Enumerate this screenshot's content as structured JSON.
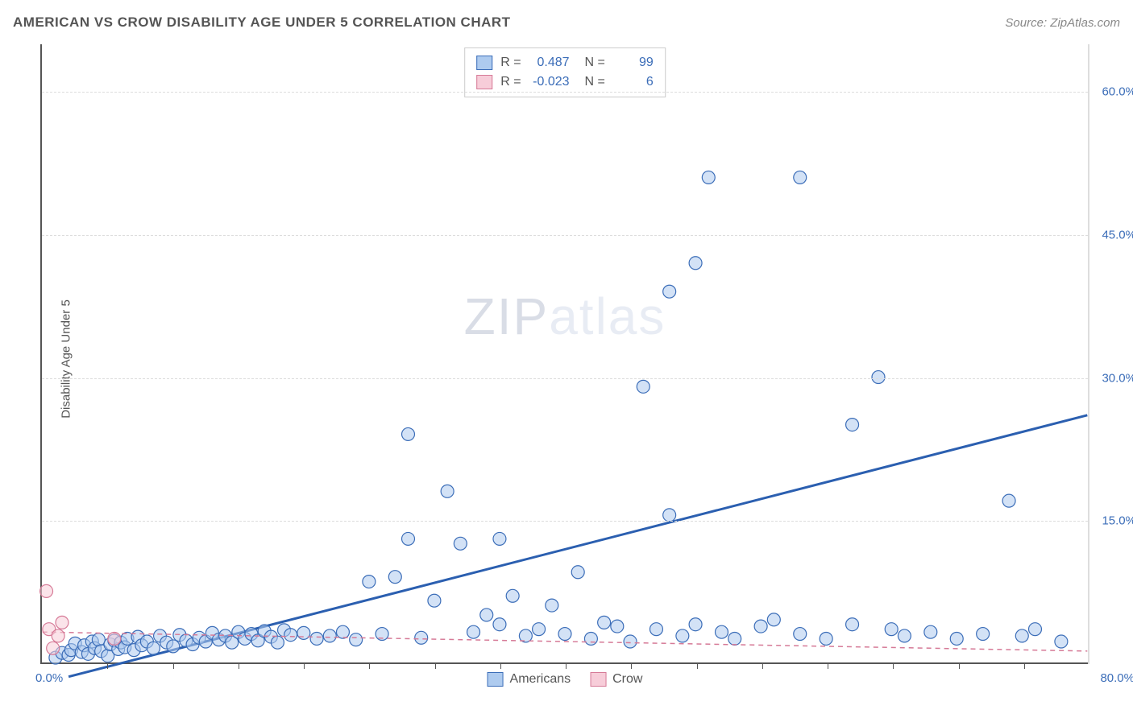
{
  "header": {
    "title": "AMERICAN VS CROW DISABILITY AGE UNDER 5 CORRELATION CHART",
    "source_prefix": "Source: ",
    "source_name": "ZipAtlas.com"
  },
  "axes": {
    "y_label": "Disability Age Under 5",
    "x_min_label": "0.0%",
    "x_max_label": "80.0%",
    "xlim": [
      0,
      80
    ],
    "ylim": [
      0,
      65
    ],
    "y_ticks": [
      15.0,
      30.0,
      45.0,
      60.0
    ],
    "y_tick_labels": [
      "15.0%",
      "30.0%",
      "45.0%",
      "60.0%"
    ],
    "x_tick_step": 5,
    "grid_color": "#dddddd",
    "axis_color": "#555555",
    "tick_label_color": "#3b6db8",
    "tick_label_fontsize": 15,
    "axis_label_fontsize": 15
  },
  "watermark": {
    "zip": "ZIP",
    "atlas": "atlas"
  },
  "legend_top": {
    "rows": [
      {
        "swatch_fill": "#aecbef",
        "swatch_stroke": "#3b6db8",
        "r": "0.487",
        "n": "99"
      },
      {
        "swatch_fill": "#f7cdd9",
        "swatch_stroke": "#d67a97",
        "r": "-0.023",
        "n": "6"
      }
    ],
    "r_label": "R =",
    "n_label": "N ="
  },
  "legend_bottom": {
    "items": [
      {
        "swatch_fill": "#aecbef",
        "swatch_stroke": "#3b6db8",
        "label": "Americans"
      },
      {
        "swatch_fill": "#f7cdd9",
        "swatch_stroke": "#d67a97",
        "label": "Crow"
      }
    ]
  },
  "chart": {
    "type": "scatter",
    "background_color": "#ffffff",
    "marker_radius": 8,
    "marker_fill_opacity": 0.55,
    "marker_stroke_width": 1.2,
    "series": [
      {
        "name": "Americans",
        "color_fill": "#aecbef",
        "color_stroke": "#3b6db8",
        "trend": {
          "x1": 2,
          "y1": -1.5,
          "x2": 80,
          "y2": 26,
          "stroke": "#2b5fb0",
          "width": 3,
          "dash": "none"
        },
        "points": [
          [
            1,
            0.5
          ],
          [
            1.5,
            1
          ],
          [
            2,
            0.8
          ],
          [
            2.2,
            1.3
          ],
          [
            2.5,
            2
          ],
          [
            3,
            1.1
          ],
          [
            3.2,
            1.8
          ],
          [
            3.5,
            0.9
          ],
          [
            3.8,
            2.2
          ],
          [
            4,
            1.5
          ],
          [
            4.3,
            2.4
          ],
          [
            4.5,
            1.2
          ],
          [
            5,
            0.7
          ],
          [
            5.2,
            1.9
          ],
          [
            5.5,
            2.3
          ],
          [
            5.8,
            1.4
          ],
          [
            6,
            2.1
          ],
          [
            6.3,
            1.6
          ],
          [
            6.5,
            2.5
          ],
          [
            7,
            1.3
          ],
          [
            7.3,
            2.7
          ],
          [
            7.6,
            1.8
          ],
          [
            8,
            2.2
          ],
          [
            8.5,
            1.5
          ],
          [
            9,
            2.8
          ],
          [
            9.5,
            2.1
          ],
          [
            10,
            1.7
          ],
          [
            10.5,
            2.9
          ],
          [
            11,
            2.3
          ],
          [
            11.5,
            1.9
          ],
          [
            12,
            2.6
          ],
          [
            12.5,
            2.2
          ],
          [
            13,
            3.1
          ],
          [
            13.5,
            2.4
          ],
          [
            14,
            2.8
          ],
          [
            14.5,
            2.1
          ],
          [
            15,
            3.2
          ],
          [
            15.5,
            2.5
          ],
          [
            16,
            3
          ],
          [
            16.5,
            2.3
          ],
          [
            17,
            3.3
          ],
          [
            17.5,
            2.7
          ],
          [
            18,
            2.1
          ],
          [
            18.5,
            3.4
          ],
          [
            19,
            2.9
          ],
          [
            20,
            3.1
          ],
          [
            21,
            2.5
          ],
          [
            22,
            2.8
          ],
          [
            23,
            3.2
          ],
          [
            24,
            2.4
          ],
          [
            25,
            8.5
          ],
          [
            26,
            3
          ],
          [
            27,
            9
          ],
          [
            28,
            13
          ],
          [
            28,
            24
          ],
          [
            29,
            2.6
          ],
          [
            30,
            6.5
          ],
          [
            31,
            18
          ],
          [
            32,
            12.5
          ],
          [
            33,
            3.2
          ],
          [
            34,
            5
          ],
          [
            35,
            4
          ],
          [
            35,
            13
          ],
          [
            36,
            7
          ],
          [
            37,
            2.8
          ],
          [
            38,
            3.5
          ],
          [
            39,
            6
          ],
          [
            40,
            3
          ],
          [
            41,
            9.5
          ],
          [
            42,
            2.5
          ],
          [
            43,
            4.2
          ],
          [
            44,
            3.8
          ],
          [
            45,
            2.2
          ],
          [
            46,
            29
          ],
          [
            47,
            3.5
          ],
          [
            48,
            15.5
          ],
          [
            48,
            39
          ],
          [
            49,
            2.8
          ],
          [
            50,
            4
          ],
          [
            50,
            42
          ],
          [
            51,
            51
          ],
          [
            52,
            3.2
          ],
          [
            53,
            2.5
          ],
          [
            55,
            3.8
          ],
          [
            56,
            4.5
          ],
          [
            58,
            3
          ],
          [
            58,
            51
          ],
          [
            60,
            2.5
          ],
          [
            62,
            4
          ],
          [
            62,
            25
          ],
          [
            64,
            30
          ],
          [
            65,
            3.5
          ],
          [
            66,
            2.8
          ],
          [
            68,
            3.2
          ],
          [
            70,
            2.5
          ],
          [
            72,
            3
          ],
          [
            74,
            17
          ],
          [
            75,
            2.8
          ],
          [
            76,
            3.5
          ],
          [
            78,
            2.2
          ]
        ]
      },
      {
        "name": "Crow",
        "color_fill": "#f7cdd9",
        "color_stroke": "#d67a97",
        "trend": {
          "x1": 0,
          "y1": 3.2,
          "x2": 80,
          "y2": 1.2,
          "stroke": "#d67a97",
          "width": 1.5,
          "dash": "6,5"
        },
        "points": [
          [
            0.3,
            7.5
          ],
          [
            0.5,
            3.5
          ],
          [
            0.8,
            1.5
          ],
          [
            1.2,
            2.8
          ],
          [
            1.5,
            4.2
          ],
          [
            5.5,
            2.5
          ]
        ]
      }
    ]
  }
}
